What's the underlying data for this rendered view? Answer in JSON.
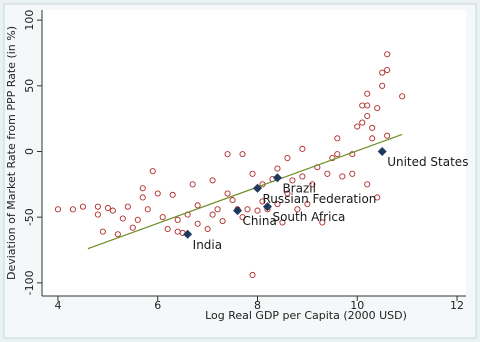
{
  "chart_data": {
    "type": "scatter",
    "x_label": "Log Real GDP per Capita (2000 USD)",
    "y_label": "Deviation of Market Rate from PPP Rate (in %)",
    "xlim": [
      3.68,
      12.18
    ],
    "ylim": [
      -110,
      107.7
    ],
    "xticks": [
      4,
      6,
      8,
      10,
      12
    ],
    "yticks": [
      -100,
      -50,
      0,
      50,
      100
    ],
    "series": [
      {
        "color": "#b22a2a",
        "x": [
          4.0,
          4.3,
          4.5,
          4.8,
          4.8,
          4.9,
          5.0,
          5.1,
          5.2,
          5.3,
          5.4,
          5.5,
          5.6,
          5.7,
          5.7,
          5.8,
          5.9,
          6.0,
          6.1,
          6.2,
          6.3,
          6.4,
          6.4,
          6.5,
          6.6,
          6.7,
          6.8,
          6.8,
          7.0,
          7.1,
          7.1,
          7.2,
          7.3,
          7.4,
          7.4,
          7.5,
          7.6,
          7.7,
          7.7,
          7.8,
          7.9,
          7.9,
          8.0,
          8.1,
          8.1,
          8.2,
          8.3,
          8.4,
          8.4,
          8.5,
          8.6,
          8.6,
          8.7,
          8.8,
          8.9,
          8.9,
          9.0,
          9.1,
          9.2,
          9.3,
          9.4,
          9.5,
          9.6,
          9.6,
          9.7,
          9.9,
          9.9,
          10.0,
          10.1,
          10.1,
          10.2,
          10.2,
          10.3,
          10.4,
          10.4,
          10.5,
          10.5,
          10.6,
          10.6,
          10.6,
          10.9,
          10.2,
          10.3,
          10.2
        ],
        "values": [
          -44,
          -44,
          -42,
          -42,
          -48,
          -61,
          -43,
          -45,
          -63,
          -51,
          -42,
          -58,
          -52,
          -35,
          -28,
          -44,
          -15,
          -32,
          -50,
          -59,
          -33,
          -52,
          -61,
          -62,
          -48,
          -25,
          -55,
          -41,
          -59,
          -48,
          -22,
          -44,
          -53,
          -2,
          -32,
          -37,
          -44,
          -2,
          -50,
          -44,
          -17,
          -94,
          -45,
          -38,
          -25,
          -44,
          -21,
          -40,
          -13,
          -54,
          -32,
          -5,
          -22,
          -44,
          -19,
          2,
          -40,
          -25,
          -12,
          -54,
          -17,
          -5,
          -2,
          10,
          -19,
          -17,
          -2,
          19,
          35,
          22,
          27,
          44,
          10,
          33,
          -35,
          60,
          50,
          74,
          62,
          12,
          42,
          35,
          18,
          -25
        ]
      }
    ],
    "highlights": {
      "color": "#1f3a5f",
      "labels": [
        "India",
        "China",
        "South Africa",
        "Russian Federation",
        "Brazil",
        "United States"
      ],
      "x": [
        6.6,
        7.6,
        8.2,
        8.0,
        8.4,
        10.5
      ],
      "values": [
        -63,
        -45,
        -42,
        -28,
        -20,
        0
      ]
    },
    "fit_line": {
      "color": "#6b8e23",
      "x": [
        4.6,
        10.9
      ],
      "values": [
        -74,
        13
      ]
    }
  }
}
